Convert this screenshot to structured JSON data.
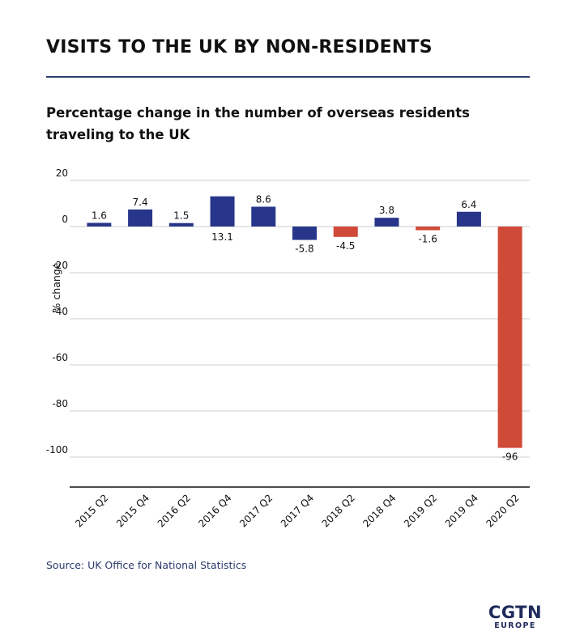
{
  "header": {
    "title": "VISITS TO THE UK BY NON-RESIDENTS",
    "subtitle": "Percentage change in the number of overseas residents traveling to the UK"
  },
  "source": "Source: UK Office for National Statistics",
  "logo": {
    "main": "CGTN",
    "sub": "EUROPE"
  },
  "colors": {
    "positive": "#27368a",
    "negative": "#d04a38",
    "grid": "#cccccc",
    "axis": "#111111"
  },
  "chart_data": {
    "type": "bar",
    "categories": [
      "2015 Q2",
      "2015 Q4",
      "2016 Q2",
      "2016 Q4",
      "2017 Q2",
      "2017 Q4",
      "2018 Q2",
      "2018 Q4",
      "2019 Q2",
      "2019 Q4",
      "2020 Q2"
    ],
    "values": [
      1.6,
      7.4,
      1.5,
      13.1,
      8.6,
      -5.8,
      -4.5,
      3.8,
      -1.6,
      6.4,
      -96
    ],
    "data_labels": [
      "1.6",
      "7.4",
      "1.5",
      "13.1",
      "8.6",
      "-5.8",
      "-4.5",
      "3.8",
      "-1.6",
      "6.4",
      "-96"
    ],
    "bar_colors": [
      "#27368a",
      "#27368a",
      "#27368a",
      "#27368a",
      "#27368a",
      "#27368a",
      "#d04a38",
      "#27368a",
      "#d04a38",
      "#27368a",
      "#d04a38"
    ],
    "ylabel": "% change",
    "yticks": [
      20,
      0,
      -20,
      -40,
      -60,
      -80,
      -100
    ],
    "ylim": [
      -113,
      20
    ],
    "grid": true
  }
}
